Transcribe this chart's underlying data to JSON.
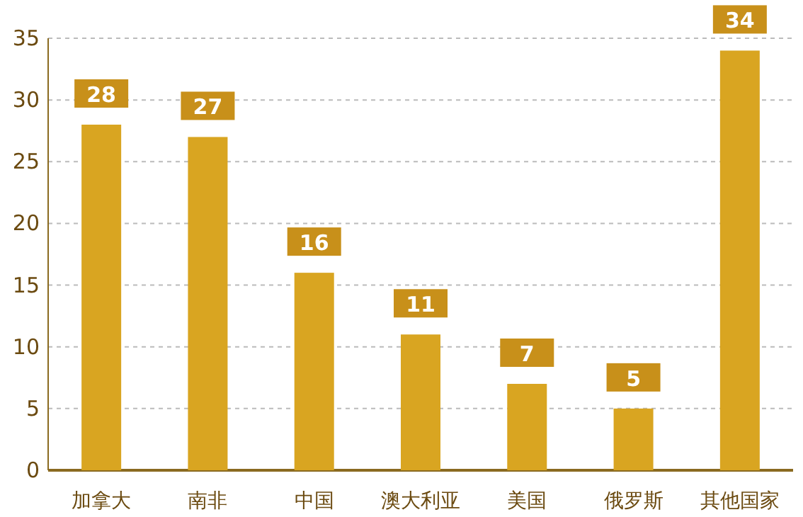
{
  "chart_data": {
    "type": "bar",
    "categories": [
      "加拿大",
      "南非",
      "中国",
      "澳大利亚",
      "美国",
      "俄罗斯",
      "其他国家"
    ],
    "values": [
      28,
      27,
      16,
      11,
      7,
      5,
      34
    ],
    "color": "#d9a521",
    "ylim": [
      0,
      35
    ],
    "yticks": [
      0,
      5,
      10,
      15,
      20,
      25,
      30,
      35
    ],
    "grid": "y",
    "data_labels": true
  }
}
